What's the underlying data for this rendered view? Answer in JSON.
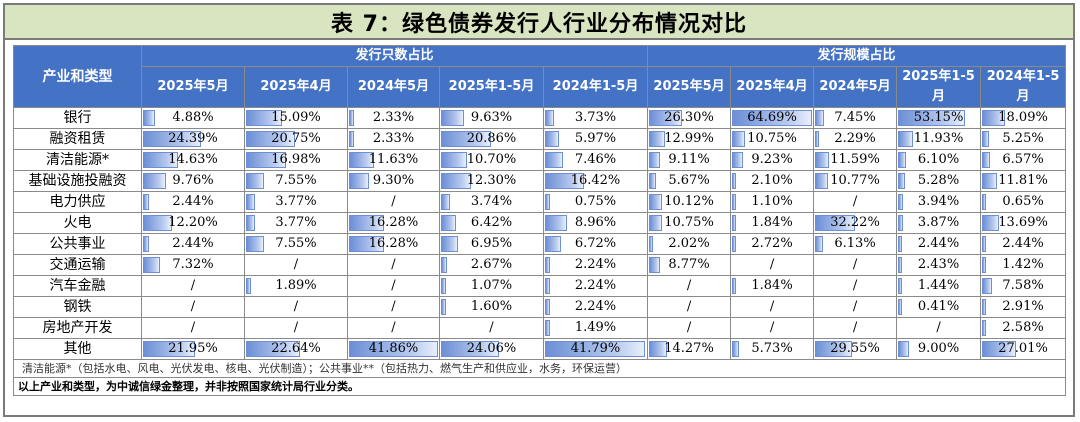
{
  "title": "表 7：绿色债券发行人行业分布情况对比",
  "header": {
    "category_label": "产业和类型",
    "group1_label": "发行只数占比",
    "group2_label": "发行规模占比",
    "periods": [
      "2025年5月",
      "2025年4月",
      "2024年5月",
      "2025年1-5月",
      "2024年1-5月",
      "2025年5月",
      "2025年4月",
      "2024年5月",
      "2025年1-5月",
      "2024年1-5月"
    ]
  },
  "rows": [
    {
      "category": "银行",
      "count": [
        "4.88%",
        "15.09%",
        "2.33%",
        "9.63%",
        "3.73%"
      ],
      "scale": [
        "26.30%",
        "64.69%",
        "7.45%",
        "53.15%",
        "18.09%"
      ]
    },
    {
      "category": "融资租赁",
      "count": [
        "24.39%",
        "20.75%",
        "2.33%",
        "20.86%",
        "5.97%"
      ],
      "scale": [
        "12.99%",
        "10.75%",
        "2.29%",
        "11.93%",
        "5.25%"
      ]
    },
    {
      "category": "清洁能源*",
      "count": [
        "14.63%",
        "16.98%",
        "11.63%",
        "10.70%",
        "7.46%"
      ],
      "scale": [
        "9.11%",
        "9.23%",
        "11.59%",
        "6.10%",
        "6.57%"
      ]
    },
    {
      "category": "基础设施投融资",
      "count": [
        "9.76%",
        "7.55%",
        "9.30%",
        "12.30%",
        "16.42%"
      ],
      "scale": [
        "5.67%",
        "2.10%",
        "10.77%",
        "5.28%",
        "11.81%"
      ]
    },
    {
      "category": "电力供应",
      "count": [
        "2.44%",
        "3.77%",
        "/",
        "3.74%",
        "0.75%"
      ],
      "scale": [
        "10.12%",
        "1.10%",
        "/",
        "3.94%",
        "0.65%"
      ]
    },
    {
      "category": "火电",
      "count": [
        "12.20%",
        "3.77%",
        "16.28%",
        "6.42%",
        "8.96%"
      ],
      "scale": [
        "10.75%",
        "1.84%",
        "32.22%",
        "3.87%",
        "13.69%"
      ]
    },
    {
      "category": "公共事业",
      "count": [
        "2.44%",
        "7.55%",
        "16.28%",
        "6.95%",
        "6.72%"
      ],
      "scale": [
        "2.02%",
        "2.72%",
        "6.13%",
        "2.44%",
        "2.44%"
      ]
    },
    {
      "category": "交通运输",
      "count": [
        "7.32%",
        "/",
        "/",
        "2.67%",
        "2.24%"
      ],
      "scale": [
        "8.77%",
        "/",
        "/",
        "2.43%",
        "1.42%"
      ]
    },
    {
      "category": "汽车金融",
      "count": [
        "/",
        "1.89%",
        "/",
        "1.07%",
        "2.24%"
      ],
      "scale": [
        "/",
        "1.84%",
        "/",
        "1.44%",
        "7.58%"
      ]
    },
    {
      "category": "钢铁",
      "count": [
        "/",
        "/",
        "/",
        "1.60%",
        "2.24%"
      ],
      "scale": [
        "/",
        "/",
        "/",
        "0.41%",
        "2.91%"
      ]
    },
    {
      "category": "房地产开发",
      "count": [
        "/",
        "/",
        "/",
        "/",
        "1.49%"
      ],
      "scale": [
        "/",
        "/",
        "/",
        "/",
        "2.58%"
      ]
    },
    {
      "category": "其他",
      "count": [
        "21.95%",
        "22.64%",
        "41.86%",
        "24.06%",
        "41.79%"
      ],
      "scale": [
        "14.27%",
        "5.73%",
        "29.55%",
        "9.00%",
        "27.01%"
      ]
    }
  ],
  "note1": "清洁能源*（包括水电、风电、光伏发电、核电、光伏制造）；公共事业**（包括热力、燃气生产和供应业，水务，环保运营）",
  "note2": "以上产业和类型，为中诚信绿金整理，并非按照国家统计局行业分类。"
}
